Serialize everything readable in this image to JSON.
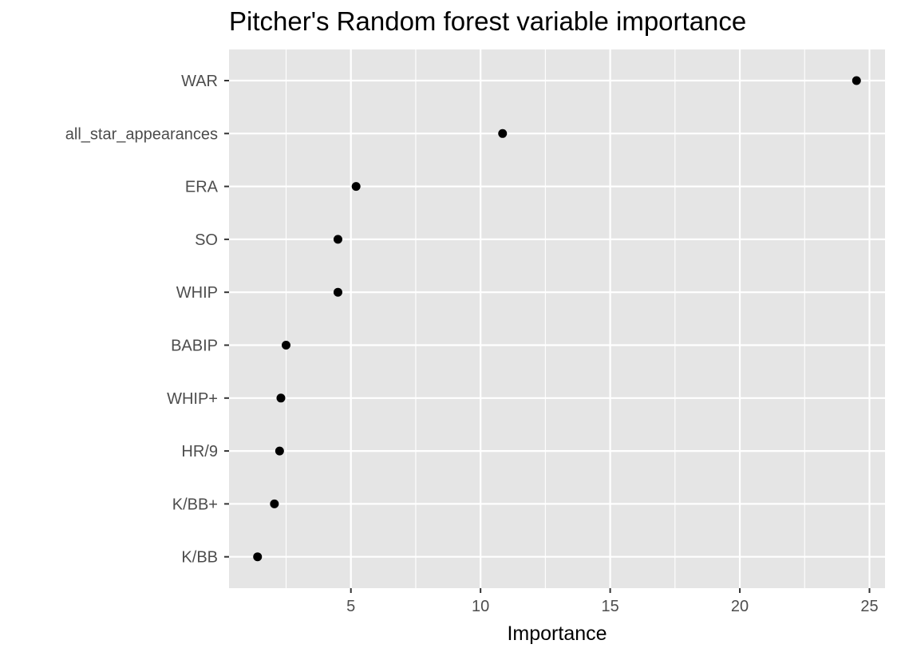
{
  "chart_data": {
    "type": "scatter",
    "title": "Pitcher's Random forest variable importance",
    "xlabel": "Importance",
    "ylabel": "",
    "categories": [
      "WAR",
      "all_star_appearances",
      "ERA",
      "SO",
      "WHIP",
      "BABIP",
      "WHIP+",
      "HR/9",
      "K/BB+",
      "K/BB"
    ],
    "values": [
      24.5,
      10.85,
      5.2,
      4.5,
      4.5,
      2.5,
      2.3,
      2.25,
      2.05,
      1.4
    ],
    "xlim": [
      0.3,
      25.6
    ],
    "x_ticks": [
      5,
      10,
      15,
      20,
      25
    ],
    "x_tick_labels": [
      "5",
      "10",
      "15",
      "20",
      "25"
    ],
    "grid": true,
    "legend": "none",
    "colors": {
      "panel": "#e5e5e5",
      "grid": "#ffffff",
      "point": "#000000",
      "tick_text": "#4d4d4d"
    }
  }
}
